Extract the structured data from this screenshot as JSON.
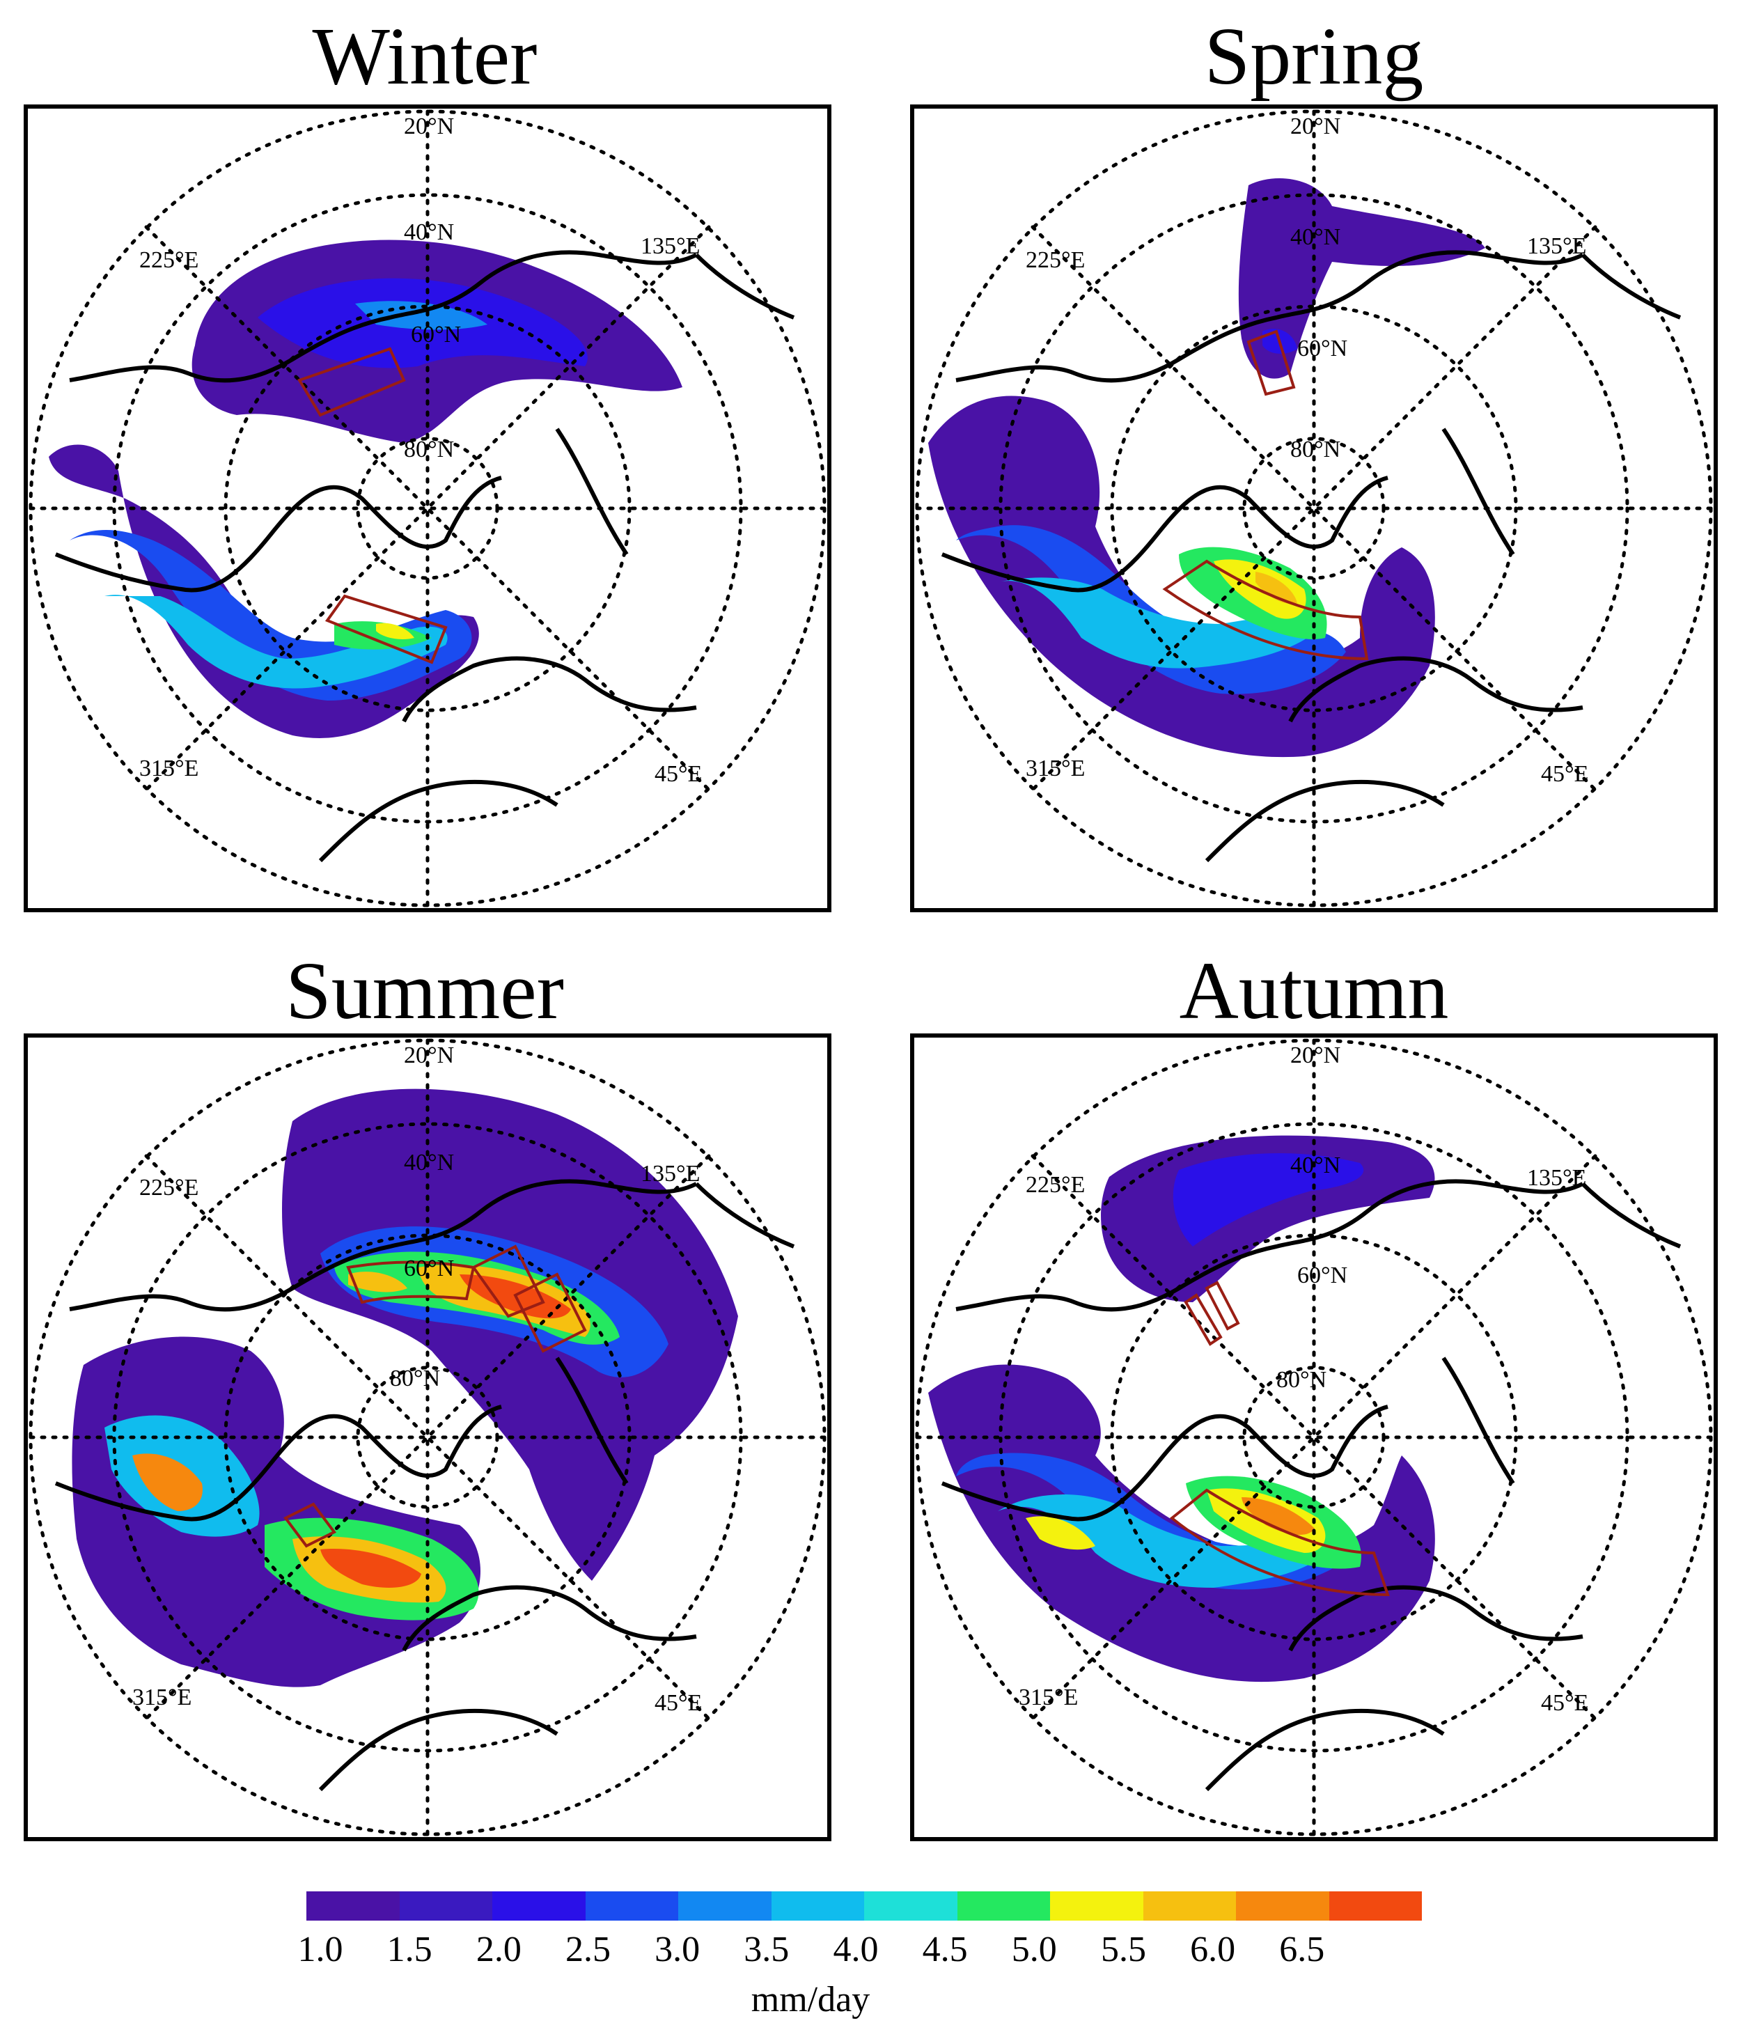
{
  "panels": [
    {
      "title": "Winter",
      "grid_labels": {
        "lat20": "20°N",
        "lat40": "40°N",
        "lat60": "60°N",
        "lat80": "80°N",
        "lon135": "135°E",
        "lon225": "225°E",
        "lon315": "315°E",
        "lon45": "45°E"
      }
    },
    {
      "title": "Spring",
      "grid_labels": {
        "lat20": "20°N",
        "lat40": "40°N",
        "lat60": "60°N",
        "lat80": "80°N",
        "lon135": "135°E",
        "lon225": "225°E",
        "lon315": "315°E",
        "lon45": "45°E"
      }
    },
    {
      "title": "Summer",
      "grid_labels": {
        "lat20": "20°N",
        "lat40": "40°N",
        "lat60": "60°N",
        "lat80": "80°N",
        "lon135": "135°E",
        "lon225": "225°E",
        "lon315": "315°E",
        "lon45": "45°E"
      }
    },
    {
      "title": "Autumn",
      "grid_labels": {
        "lat20": "20°N",
        "lat40": "40°N",
        "lat60": "60°N",
        "lat80": "80°N",
        "lon135": "135°E",
        "lon225": "225°E",
        "lon315": "315°E",
        "lon45": "45°E"
      }
    }
  ],
  "colorbar": {
    "unit": "mm/day",
    "tick_labels": [
      "1.0",
      "1.5",
      "2.0",
      "2.5",
      "3.0",
      "3.5",
      "4.0",
      "4.5",
      "5.0",
      "5.5",
      "6.0",
      "6.5"
    ],
    "colors": [
      "#4a12a6",
      "#3a1ac0",
      "#2a10e8",
      "#1a4cf0",
      "#1288f2",
      "#10bcee",
      "#1ee0d8",
      "#24e860",
      "#f4f20e",
      "#f6c010",
      "#f6880e",
      "#f24a10"
    ]
  },
  "colors": {
    "outline_box": "#9a1e14",
    "coast": "#000000",
    "grid": "#000000"
  }
}
